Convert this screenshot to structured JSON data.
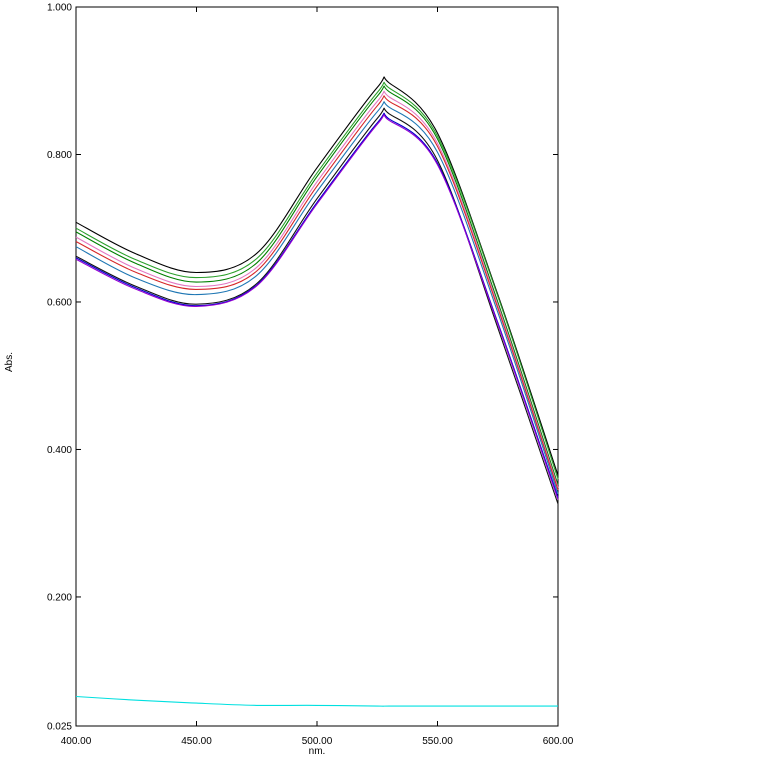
{
  "chart_data": {
    "type": "line",
    "title": "",
    "xlabel": "nm.",
    "ylabel": "Abs.",
    "xlim": [
      400,
      600
    ],
    "ylim": [
      0.025,
      1.0
    ],
    "grid": false,
    "legend": "none",
    "x_ticks": [
      400,
      450,
      500,
      550,
      600
    ],
    "x_tick_labels": [
      "400.00",
      "450.00",
      "500.00",
      "550.00",
      "600.00"
    ],
    "y_ticks": [
      0.025,
      0.2,
      0.4,
      0.6,
      0.8,
      1.0
    ],
    "y_tick_labels": [
      "0.025",
      "0.200",
      "0.400",
      "0.600",
      "0.800",
      "1.000"
    ],
    "x": [
      400,
      425,
      450,
      475,
      500,
      525,
      530,
      550,
      575,
      600
    ],
    "series": [
      {
        "color": "#000000",
        "values": [
          0.708,
          0.665,
          0.64,
          0.666,
          0.782,
          0.891,
          0.897,
          0.829,
          0.61,
          0.365
        ]
      },
      {
        "color": "#2ca02c",
        "values": [
          0.7,
          0.657,
          0.633,
          0.659,
          0.775,
          0.884,
          0.89,
          0.825,
          0.608,
          0.36
        ]
      },
      {
        "color": "#008000",
        "values": [
          0.695,
          0.652,
          0.627,
          0.653,
          0.77,
          0.879,
          0.885,
          0.821,
          0.6,
          0.352
        ]
      },
      {
        "color": "#e377c2",
        "values": [
          0.688,
          0.645,
          0.621,
          0.647,
          0.763,
          0.872,
          0.878,
          0.815,
          0.596,
          0.348
        ]
      },
      {
        "color": "#d62728",
        "values": [
          0.682,
          0.64,
          0.617,
          0.642,
          0.757,
          0.866,
          0.872,
          0.811,
          0.592,
          0.345
        ]
      },
      {
        "color": "#1f77b4",
        "values": [
          0.675,
          0.632,
          0.61,
          0.636,
          0.75,
          0.858,
          0.864,
          0.803,
          0.586,
          0.34
        ]
      },
      {
        "color": "#111111",
        "values": [
          0.662,
          0.621,
          0.597,
          0.625,
          0.74,
          0.849,
          0.855,
          0.792,
          0.565,
          0.326
        ]
      },
      {
        "color": "#0000cc",
        "values": [
          0.66,
          0.619,
          0.595,
          0.623,
          0.735,
          0.843,
          0.848,
          0.788,
          0.572,
          0.335
        ]
      },
      {
        "color": "#9400d3",
        "values": [
          0.658,
          0.617,
          0.594,
          0.622,
          0.733,
          0.841,
          0.846,
          0.786,
          0.57,
          0.332
        ]
      },
      {
        "color": "#00e0e0",
        "values": [
          0.065,
          0.06,
          0.056,
          0.053,
          0.053,
          0.052,
          0.052,
          0.052,
          0.052,
          0.052
        ]
      }
    ]
  }
}
